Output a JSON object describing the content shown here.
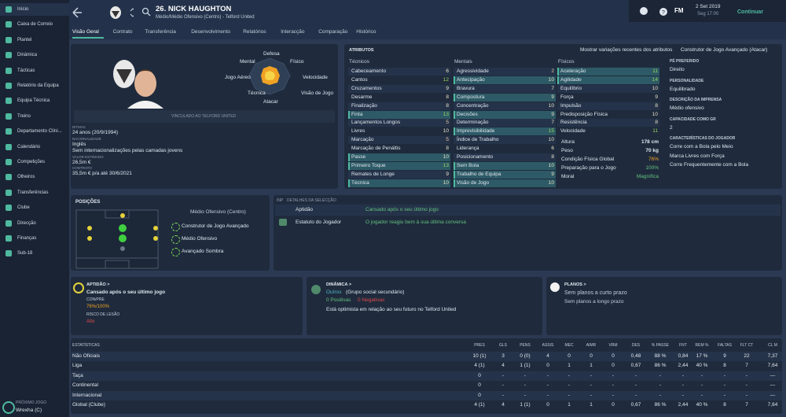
{
  "sidebar": {
    "items": [
      "Início",
      "Caixa de Correio",
      "Plantel",
      "Dinâmica",
      "Tácticas",
      "Relatório da Equipa",
      "Equipa Técnica",
      "Treino",
      "Departamento Clíni...",
      "Calendário",
      "Competições",
      "Olheiros",
      "Transferências",
      "Clube",
      "Direcção",
      "Finanças",
      "Sub-18"
    ],
    "next_match_label": "PRÓXIMO JOGO",
    "next_match": "Wrexha (C)"
  },
  "header": {
    "player": "26. NICK HAUGHTON",
    "subtitle": "Médio/Médio Ofensivo (Centro) - Telford United",
    "logo": "FM",
    "date": "2 Set 2019",
    "time": "Seg 17:00",
    "continue": "Continuar",
    "tabs": [
      "Visão Geral",
      "Contrato",
      "Transferência",
      "Desenvolvimento",
      "Relatórios",
      "Interacção",
      "Comparação",
      "Histórico"
    ]
  },
  "profile": {
    "radar": [
      "Defesa",
      "Físico",
      "Velocidade",
      "Visão de Jogo",
      "Atacar",
      "Técnica",
      "Jogo Aéreo",
      "Mental"
    ],
    "club_status": "VINCULADO AO TELFORD UNITED",
    "info": [
      [
        "DITMAC",
        "24 anos (20/9/1994)"
      ],
      [
        "NACIONALIDADE",
        "Inglês",
        "Sem internacionalizações pelas camadas jovens"
      ],
      [
        "VALOR ESTIMADO",
        "26,5m €"
      ],
      [
        "CONTRATO",
        "35,5m € p/a até 30/6/2021"
      ]
    ]
  },
  "attributes": {
    "title": "ATRIBUTOS",
    "toggle": "Mostrar variações recentes dos atributos",
    "role": "Construtor de Jogo Avançado (Atacar)",
    "groups": [
      {
        "name": "Técnicos",
        "items": [
          {
            "name": "Cabeceamento",
            "value": 6,
            "key": false
          },
          {
            "name": "Cantos",
            "value": 12,
            "key": false
          },
          {
            "name": "Cruzamentos",
            "value": 9,
            "key": false
          },
          {
            "name": "Desarme",
            "value": 8,
            "key": false
          },
          {
            "name": "Finalização",
            "value": 8,
            "key": false
          },
          {
            "name": "Finta",
            "value": 13,
            "key": true
          },
          {
            "name": "Lançamentos Longos",
            "value": 5,
            "key": false
          },
          {
            "name": "Livres",
            "value": 10,
            "key": false
          },
          {
            "name": "Marcação",
            "value": 5,
            "key": false
          },
          {
            "name": "Marcação de Penáltis",
            "value": 8,
            "key": false
          },
          {
            "name": "Passe",
            "value": 10,
            "key": true
          },
          {
            "name": "Primeiro Toque",
            "value": 13,
            "key": true
          },
          {
            "name": "Remates de Longe",
            "value": 9,
            "key": false
          },
          {
            "name": "Técnica",
            "value": 10,
            "key": true
          }
        ]
      },
      {
        "name": "Mentais",
        "items": [
          {
            "name": "Agressividade",
            "value": 2,
            "key": false
          },
          {
            "name": "Antecipação",
            "value": 10,
            "key": true
          },
          {
            "name": "Bravura",
            "value": 7,
            "key": false
          },
          {
            "name": "Compostura",
            "value": 9,
            "key": true
          },
          {
            "name": "Concentração",
            "value": 10,
            "key": false
          },
          {
            "name": "Decisões",
            "value": 9,
            "key": true
          },
          {
            "name": "Determinação",
            "value": 7,
            "key": false
          },
          {
            "name": "Imprevisibilidade",
            "value": 15,
            "key": true
          },
          {
            "name": "Índice de Trabalho",
            "value": 10,
            "key": false
          },
          {
            "name": "Liderança",
            "value": 6,
            "key": false
          },
          {
            "name": "Posicionamento",
            "value": 8,
            "key": false
          },
          {
            "name": "Sem Bola",
            "value": 10,
            "key": true
          },
          {
            "name": "Trabalho de Equipa",
            "value": 9,
            "key": true
          },
          {
            "name": "Visão de Jogo",
            "value": 10,
            "key": true
          }
        ]
      },
      {
        "name": "Físicos",
        "items": [
          {
            "name": "Aceleração",
            "value": 11,
            "key": true
          },
          {
            "name": "Agilidade",
            "value": 14,
            "key": true
          },
          {
            "name": "Equilíbrio",
            "value": 10,
            "key": false
          },
          {
            "name": "Força",
            "value": 9,
            "key": false
          },
          {
            "name": "Impulsão",
            "value": 8,
            "key": false
          },
          {
            "name": "Predisposição Física",
            "value": 10,
            "key": false
          },
          {
            "name": "Resistência",
            "value": 8,
            "key": false
          },
          {
            "name": "Velocidade",
            "value": 11,
            "key": false
          }
        ]
      }
    ],
    "extra": [
      {
        "name": "Altura",
        "value": "178 cm"
      },
      {
        "name": "Peso",
        "value": "70 kg"
      },
      {
        "name": "Condição Física Global",
        "value": "76%"
      },
      {
        "name": "Preparação para o Jogo",
        "value": "100%"
      },
      {
        "name": "Moral",
        "value": "Magnífica"
      }
    ],
    "side": [
      {
        "label": "PÉ PREFERIDO",
        "values": [
          "Direito"
        ]
      },
      {
        "label": "PERSONALIDADE",
        "values": [
          "Equilibrado"
        ]
      },
      {
        "label": "DESCRIÇÃO DA IMPRENSA",
        "values": [
          "Médio ofensivo"
        ]
      },
      {
        "label": "CAPACIDADE COMO GR",
        "values": [
          "2"
        ]
      },
      {
        "label": "CARACTERÍSTICAS DO JOGADOR",
        "values": [
          "Corre com a Bola pelo Meio",
          "Marca Livres com Força",
          "Corre Frequentemente com a Bola"
        ]
      }
    ]
  },
  "positions": {
    "title": "POSIÇÕES",
    "position": "Médio Ofensivo (Centro)",
    "roles": [
      "Construtor de Jogo Avançado",
      "Médio Ofensivo",
      "Avançado Sombra"
    ]
  },
  "details": {
    "col1": "INP",
    "col2": "DETALHES DA SELECÇÃO",
    "rows": [
      {
        "label": "Aptidão",
        "text": "Cansado após o seu último jogo"
      },
      {
        "label": "Estatuto do Jogador",
        "text": "O jogador reagiu bem à sua última conversa"
      }
    ]
  },
  "cards": {
    "aptitude": {
      "title": "APTIDÃO >",
      "status": "Cansado após o seu último jogo",
      "cond_label": "CON/PRE",
      "cond": "76%/100%",
      "risk_label": "RISCO DE LESÃO",
      "risk": "Alto"
    },
    "dynamics": {
      "title": "DINÂMICA >",
      "group": "Outros",
      "group_note": "(Grupo social secundário)",
      "positive": "0 Positivas",
      "negative": "0 Negativas",
      "note": "Está optimista em relação ao seu futuro no Telford United"
    },
    "plans": {
      "title": "PLANOS >",
      "short": "Sem planos a curto prazo",
      "long": "Sem planos a longo prazo"
    }
  },
  "stats": {
    "headers": [
      "ESTATÍSTICAS",
      "PRES",
      "GLS",
      "PENS",
      "ASSIS",
      "MEC",
      "AIMR",
      "VRM",
      "DES",
      "% PASSE",
      "FNT",
      "REM %",
      "FALTAS",
      "FLT CT",
      "CL M"
    ],
    "rows": [
      [
        "Não Oficiais",
        "10 (1)",
        "3",
        "0 (0)",
        "4",
        "0",
        "0",
        "0",
        "0,48",
        "88 %",
        "0,84",
        "17 %",
        "9",
        "22",
        "7,37"
      ],
      [
        "Liga",
        "4 (1)",
        "4",
        "1 (1)",
        "0",
        "1",
        "1",
        "0",
        "0,67",
        "86 %",
        "2,44",
        "40 %",
        "8",
        "7",
        "7,64"
      ],
      [
        "Taça",
        "0",
        "-",
        "-",
        "-",
        "-",
        "-",
        "-",
        "-",
        "-",
        "-",
        "-",
        "-",
        "-",
        "—"
      ],
      [
        "Continental",
        "0",
        "-",
        "-",
        "-",
        "-",
        "-",
        "-",
        "-",
        "-",
        "-",
        "-",
        "-",
        "-",
        "—"
      ],
      [
        "Internacional",
        "0",
        "-",
        "-",
        "-",
        "-",
        "-",
        "-",
        "-",
        "-",
        "-",
        "-",
        "-",
        "-",
        "—"
      ],
      [
        "Global (Clube)",
        "4 (1)",
        "4",
        "1 (1)",
        "0",
        "1",
        "1",
        "0",
        "0,67",
        "86 %",
        "2,44",
        "40 %",
        "8",
        "7",
        "7,64"
      ]
    ]
  }
}
